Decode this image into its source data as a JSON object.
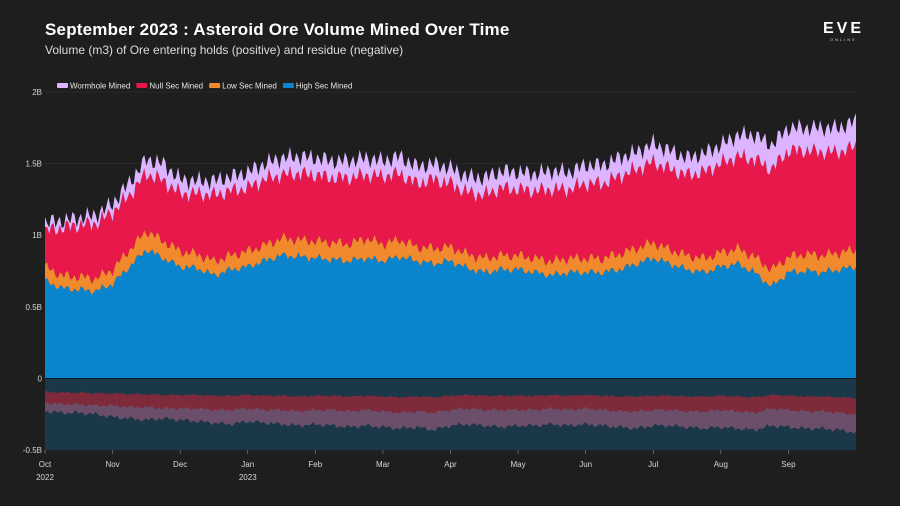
{
  "title": "September 2023 : Asteroid Ore Volume Mined Over Time",
  "subtitle": "Volume (m3) of Ore entering holds (positive) and residue (negative)",
  "logo": {
    "text": "EVE",
    "subtext": "ONLINE"
  },
  "chart_data": {
    "type": "area",
    "stacked": true,
    "title": "September 2023 : Asteroid Ore Volume Mined Over Time",
    "xlabel": "",
    "ylabel": "",
    "ylim": [
      -0.5,
      2.0
    ],
    "y_unit": "billion m3",
    "y_ticks": [
      {
        "value": 2.0,
        "label": "2B"
      },
      {
        "value": 1.5,
        "label": "1.5B"
      },
      {
        "value": 1.0,
        "label": "1B"
      },
      {
        "value": 0.5,
        "label": "0.5B"
      },
      {
        "value": 0,
        "label": "0"
      },
      {
        "value": -0.5,
        "label": "-0.5B"
      }
    ],
    "x_ticks": [
      {
        "month": 0,
        "label": "Oct",
        "sublabel": "2022"
      },
      {
        "month": 1,
        "label": "Nov",
        "sublabel": ""
      },
      {
        "month": 2,
        "label": "Dec",
        "sublabel": ""
      },
      {
        "month": 3,
        "label": "Jan",
        "sublabel": "2023"
      },
      {
        "month": 4,
        "label": "Feb",
        "sublabel": ""
      },
      {
        "month": 5,
        "label": "Mar",
        "sublabel": ""
      },
      {
        "month": 6,
        "label": "Apr",
        "sublabel": ""
      },
      {
        "month": 7,
        "label": "May",
        "sublabel": ""
      },
      {
        "month": 8,
        "label": "Jun",
        "sublabel": ""
      },
      {
        "month": 9,
        "label": "Jul",
        "sublabel": ""
      },
      {
        "month": 10,
        "label": "Aug",
        "sublabel": ""
      },
      {
        "month": 11,
        "label": "Sep",
        "sublabel": ""
      }
    ],
    "x_months": [
      0.0,
      0.25,
      0.5,
      0.75,
      1.0,
      1.25,
      1.5,
      1.75,
      2.0,
      2.25,
      2.5,
      2.75,
      3.0,
      3.25,
      3.5,
      3.75,
      4.0,
      4.25,
      4.5,
      4.75,
      5.0,
      5.25,
      5.5,
      5.75,
      6.0,
      6.25,
      6.5,
      6.75,
      7.0,
      7.25,
      7.5,
      7.75,
      8.0,
      8.25,
      8.5,
      8.75,
      9.0,
      9.25,
      9.5,
      9.75,
      10.0,
      10.25,
      10.5,
      10.75,
      11.0,
      11.25,
      11.5,
      11.75,
      12.0
    ],
    "series": [
      {
        "name": "High Sec Mined",
        "color": "#0a84cc",
        "values": [
          0.68,
          0.63,
          0.62,
          0.61,
          0.66,
          0.78,
          0.9,
          0.84,
          0.78,
          0.77,
          0.72,
          0.76,
          0.78,
          0.82,
          0.86,
          0.85,
          0.84,
          0.83,
          0.82,
          0.84,
          0.82,
          0.85,
          0.82,
          0.8,
          0.82,
          0.77,
          0.74,
          0.76,
          0.76,
          0.74,
          0.72,
          0.74,
          0.74,
          0.74,
          0.76,
          0.8,
          0.84,
          0.8,
          0.76,
          0.74,
          0.78,
          0.8,
          0.74,
          0.64,
          0.74,
          0.75,
          0.74,
          0.76,
          0.78
        ]
      },
      {
        "name": "Low Sec Mined",
        "color": "#f08a2c",
        "values": [
          0.1,
          0.09,
          0.09,
          0.09,
          0.1,
          0.12,
          0.13,
          0.12,
          0.11,
          0.1,
          0.1,
          0.1,
          0.11,
          0.11,
          0.12,
          0.12,
          0.12,
          0.12,
          0.12,
          0.14,
          0.12,
          0.12,
          0.1,
          0.11,
          0.1,
          0.1,
          0.1,
          0.1,
          0.1,
          0.1,
          0.1,
          0.1,
          0.1,
          0.1,
          0.11,
          0.11,
          0.11,
          0.1,
          0.1,
          0.1,
          0.1,
          0.11,
          0.11,
          0.12,
          0.11,
          0.12,
          0.12,
          0.12,
          0.12
        ]
      },
      {
        "name": "Null Sec Mined",
        "color": "#e8184a",
        "values": [
          0.25,
          0.33,
          0.36,
          0.38,
          0.4,
          0.38,
          0.4,
          0.42,
          0.4,
          0.42,
          0.46,
          0.45,
          0.44,
          0.46,
          0.44,
          0.46,
          0.46,
          0.45,
          0.46,
          0.44,
          0.47,
          0.46,
          0.44,
          0.48,
          0.44,
          0.43,
          0.44,
          0.47,
          0.46,
          0.47,
          0.5,
          0.48,
          0.52,
          0.52,
          0.54,
          0.55,
          0.56,
          0.56,
          0.56,
          0.6,
          0.62,
          0.64,
          0.68,
          0.7,
          0.74,
          0.72,
          0.72,
          0.7,
          0.72
        ]
      },
      {
        "name": "Wormhole Mined",
        "color": "#dcb4ff",
        "values": [
          0.06,
          0.05,
          0.05,
          0.06,
          0.06,
          0.09,
          0.1,
          0.12,
          0.1,
          0.09,
          0.1,
          0.1,
          0.11,
          0.11,
          0.12,
          0.12,
          0.12,
          0.12,
          0.12,
          0.12,
          0.11,
          0.12,
          0.12,
          0.11,
          0.11,
          0.11,
          0.12,
          0.12,
          0.12,
          0.12,
          0.13,
          0.12,
          0.13,
          0.13,
          0.13,
          0.12,
          0.13,
          0.13,
          0.12,
          0.13,
          0.13,
          0.15,
          0.17,
          0.17,
          0.16,
          0.16,
          0.17,
          0.17,
          0.18
        ]
      }
    ],
    "residue": {
      "total": [
        -0.23,
        -0.24,
        -0.24,
        -0.25,
        -0.27,
        -0.28,
        -0.29,
        -0.28,
        -0.29,
        -0.3,
        -0.31,
        -0.32,
        -0.3,
        -0.31,
        -0.32,
        -0.33,
        -0.32,
        -0.33,
        -0.34,
        -0.33,
        -0.34,
        -0.35,
        -0.34,
        -0.36,
        -0.33,
        -0.32,
        -0.33,
        -0.34,
        -0.33,
        -0.33,
        -0.32,
        -0.33,
        -0.32,
        -0.33,
        -0.34,
        -0.35,
        -0.33,
        -0.33,
        -0.34,
        -0.35,
        -0.34,
        -0.35,
        -0.36,
        -0.33,
        -0.34,
        -0.35,
        -0.35,
        -0.36,
        -0.38
      ],
      "upper": [
        -0.17,
        -0.18,
        -0.18,
        -0.19,
        -0.19,
        -0.2,
        -0.2,
        -0.21,
        -0.21,
        -0.21,
        -0.22,
        -0.22,
        -0.21,
        -0.22,
        -0.22,
        -0.23,
        -0.22,
        -0.22,
        -0.23,
        -0.22,
        -0.23,
        -0.24,
        -0.23,
        -0.24,
        -0.22,
        -0.21,
        -0.22,
        -0.22,
        -0.22,
        -0.22,
        -0.21,
        -0.22,
        -0.21,
        -0.22,
        -0.23,
        -0.23,
        -0.22,
        -0.22,
        -0.23,
        -0.23,
        -0.22,
        -0.23,
        -0.24,
        -0.21,
        -0.22,
        -0.23,
        -0.23,
        -0.24,
        -0.25
      ]
    },
    "legend": {
      "placement": "top-left",
      "items": [
        "Wormhole Mined",
        "Null Sec Mined",
        "Low Sec Mined",
        "High Sec Mined"
      ]
    }
  }
}
